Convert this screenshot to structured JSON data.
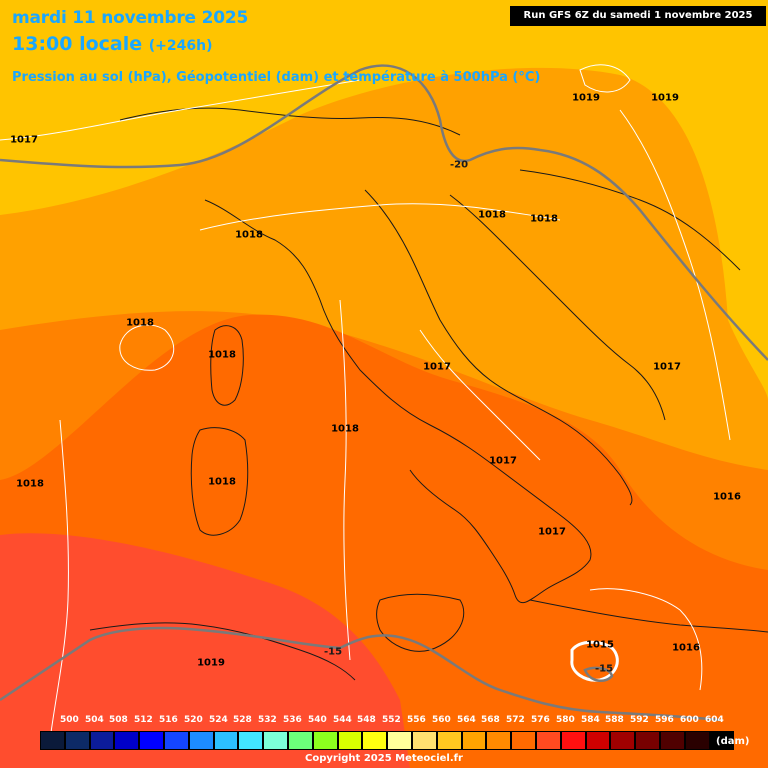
{
  "header": {
    "title_date": "mardi 11 novembre 2025",
    "title_time": "13:00 locale",
    "title_lead": "(+246h)",
    "subtitle": "Pression au sol (hPa), Géopotentiel (dam) et température à 500hPa (°C)",
    "run_info": "Run GFS 6Z du samedi 1 novembre 2025"
  },
  "isobar_labels": [
    "1017",
    "1019",
    "1019",
    "1018",
    "1018",
    "1018",
    "1018",
    "1018",
    "1017",
    "1017",
    "1017",
    "1016",
    "1018",
    "1018",
    "1017",
    "1015",
    "1016",
    "1019",
    "1018"
  ],
  "temp_labels": [
    "-20",
    "-15",
    "-15"
  ],
  "legend": {
    "values": [
      "500",
      "504",
      "508",
      "512",
      "516",
      "520",
      "524",
      "528",
      "532",
      "536",
      "540",
      "544",
      "548",
      "552",
      "556",
      "560",
      "564",
      "568",
      "572",
      "576",
      "580",
      "584",
      "588",
      "592",
      "596",
      "600",
      "604"
    ],
    "colors": [
      "#0b1a3a",
      "#0d2a66",
      "#0c1c9a",
      "#0000c8",
      "#0000ff",
      "#1446ff",
      "#1d8cff",
      "#2cc0ff",
      "#42e6ff",
      "#7cffd8",
      "#6cff7a",
      "#8cff1e",
      "#d8ff00",
      "#ffff10",
      "#ffff9a",
      "#ffe070",
      "#ffc820",
      "#ffa400",
      "#ff8a00",
      "#ff6a00",
      "#ff4a20",
      "#ff1010",
      "#d00000",
      "#a00000",
      "#780000",
      "#500000",
      "#2a0000",
      "#000000"
    ],
    "unit": "(dam)"
  },
  "colors": {
    "geopot_584": "#ffc400",
    "geopot_588": "#ffa100",
    "geopot_592": "#ff8200",
    "geopot_596": "#ff6a00",
    "geopot_600": "#ff4d2e",
    "land_edge": "#1a1a1a",
    "isobar": "#ffffff",
    "isotherm": "#7a7a7a"
  },
  "footer": {
    "copyright": "Copyright 2025 Meteociel.fr"
  }
}
